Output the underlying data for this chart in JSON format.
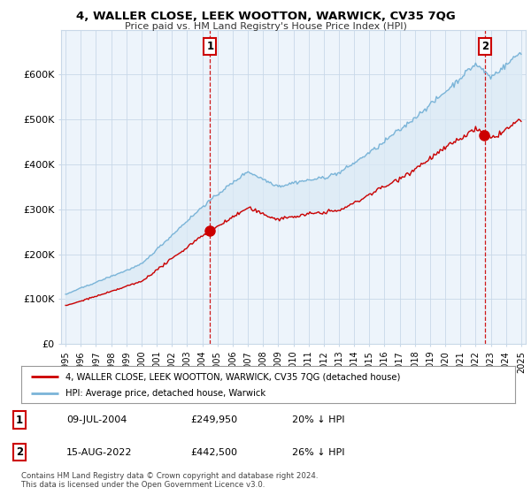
{
  "title": "4, WALLER CLOSE, LEEK WOOTTON, WARWICK, CV35 7QG",
  "subtitle": "Price paid vs. HM Land Registry's House Price Index (HPI)",
  "legend_line1": "4, WALLER CLOSE, LEEK WOOTTON, WARWICK, CV35 7QG (detached house)",
  "legend_line2": "HPI: Average price, detached house, Warwick",
  "annotation1_date": "09-JUL-2004",
  "annotation1_price": "£249,950",
  "annotation1_note": "20% ↓ HPI",
  "annotation2_date": "15-AUG-2022",
  "annotation2_price": "£442,500",
  "annotation2_note": "26% ↓ HPI",
  "footer": "Contains HM Land Registry data © Crown copyright and database right 2024.\nThis data is licensed under the Open Government Licence v3.0.",
  "hpi_color": "#7ab4d8",
  "hpi_fill_color": "#daeaf5",
  "price_color": "#cc0000",
  "sale1_year": 2004.52,
  "sale2_year": 2022.62,
  "sale1_price": 249950,
  "sale2_price": 442500,
  "ylim_max": 700000,
  "background_color": "#ffffff",
  "chart_bg_color": "#edf4fb",
  "grid_color": "#c8d8e8"
}
